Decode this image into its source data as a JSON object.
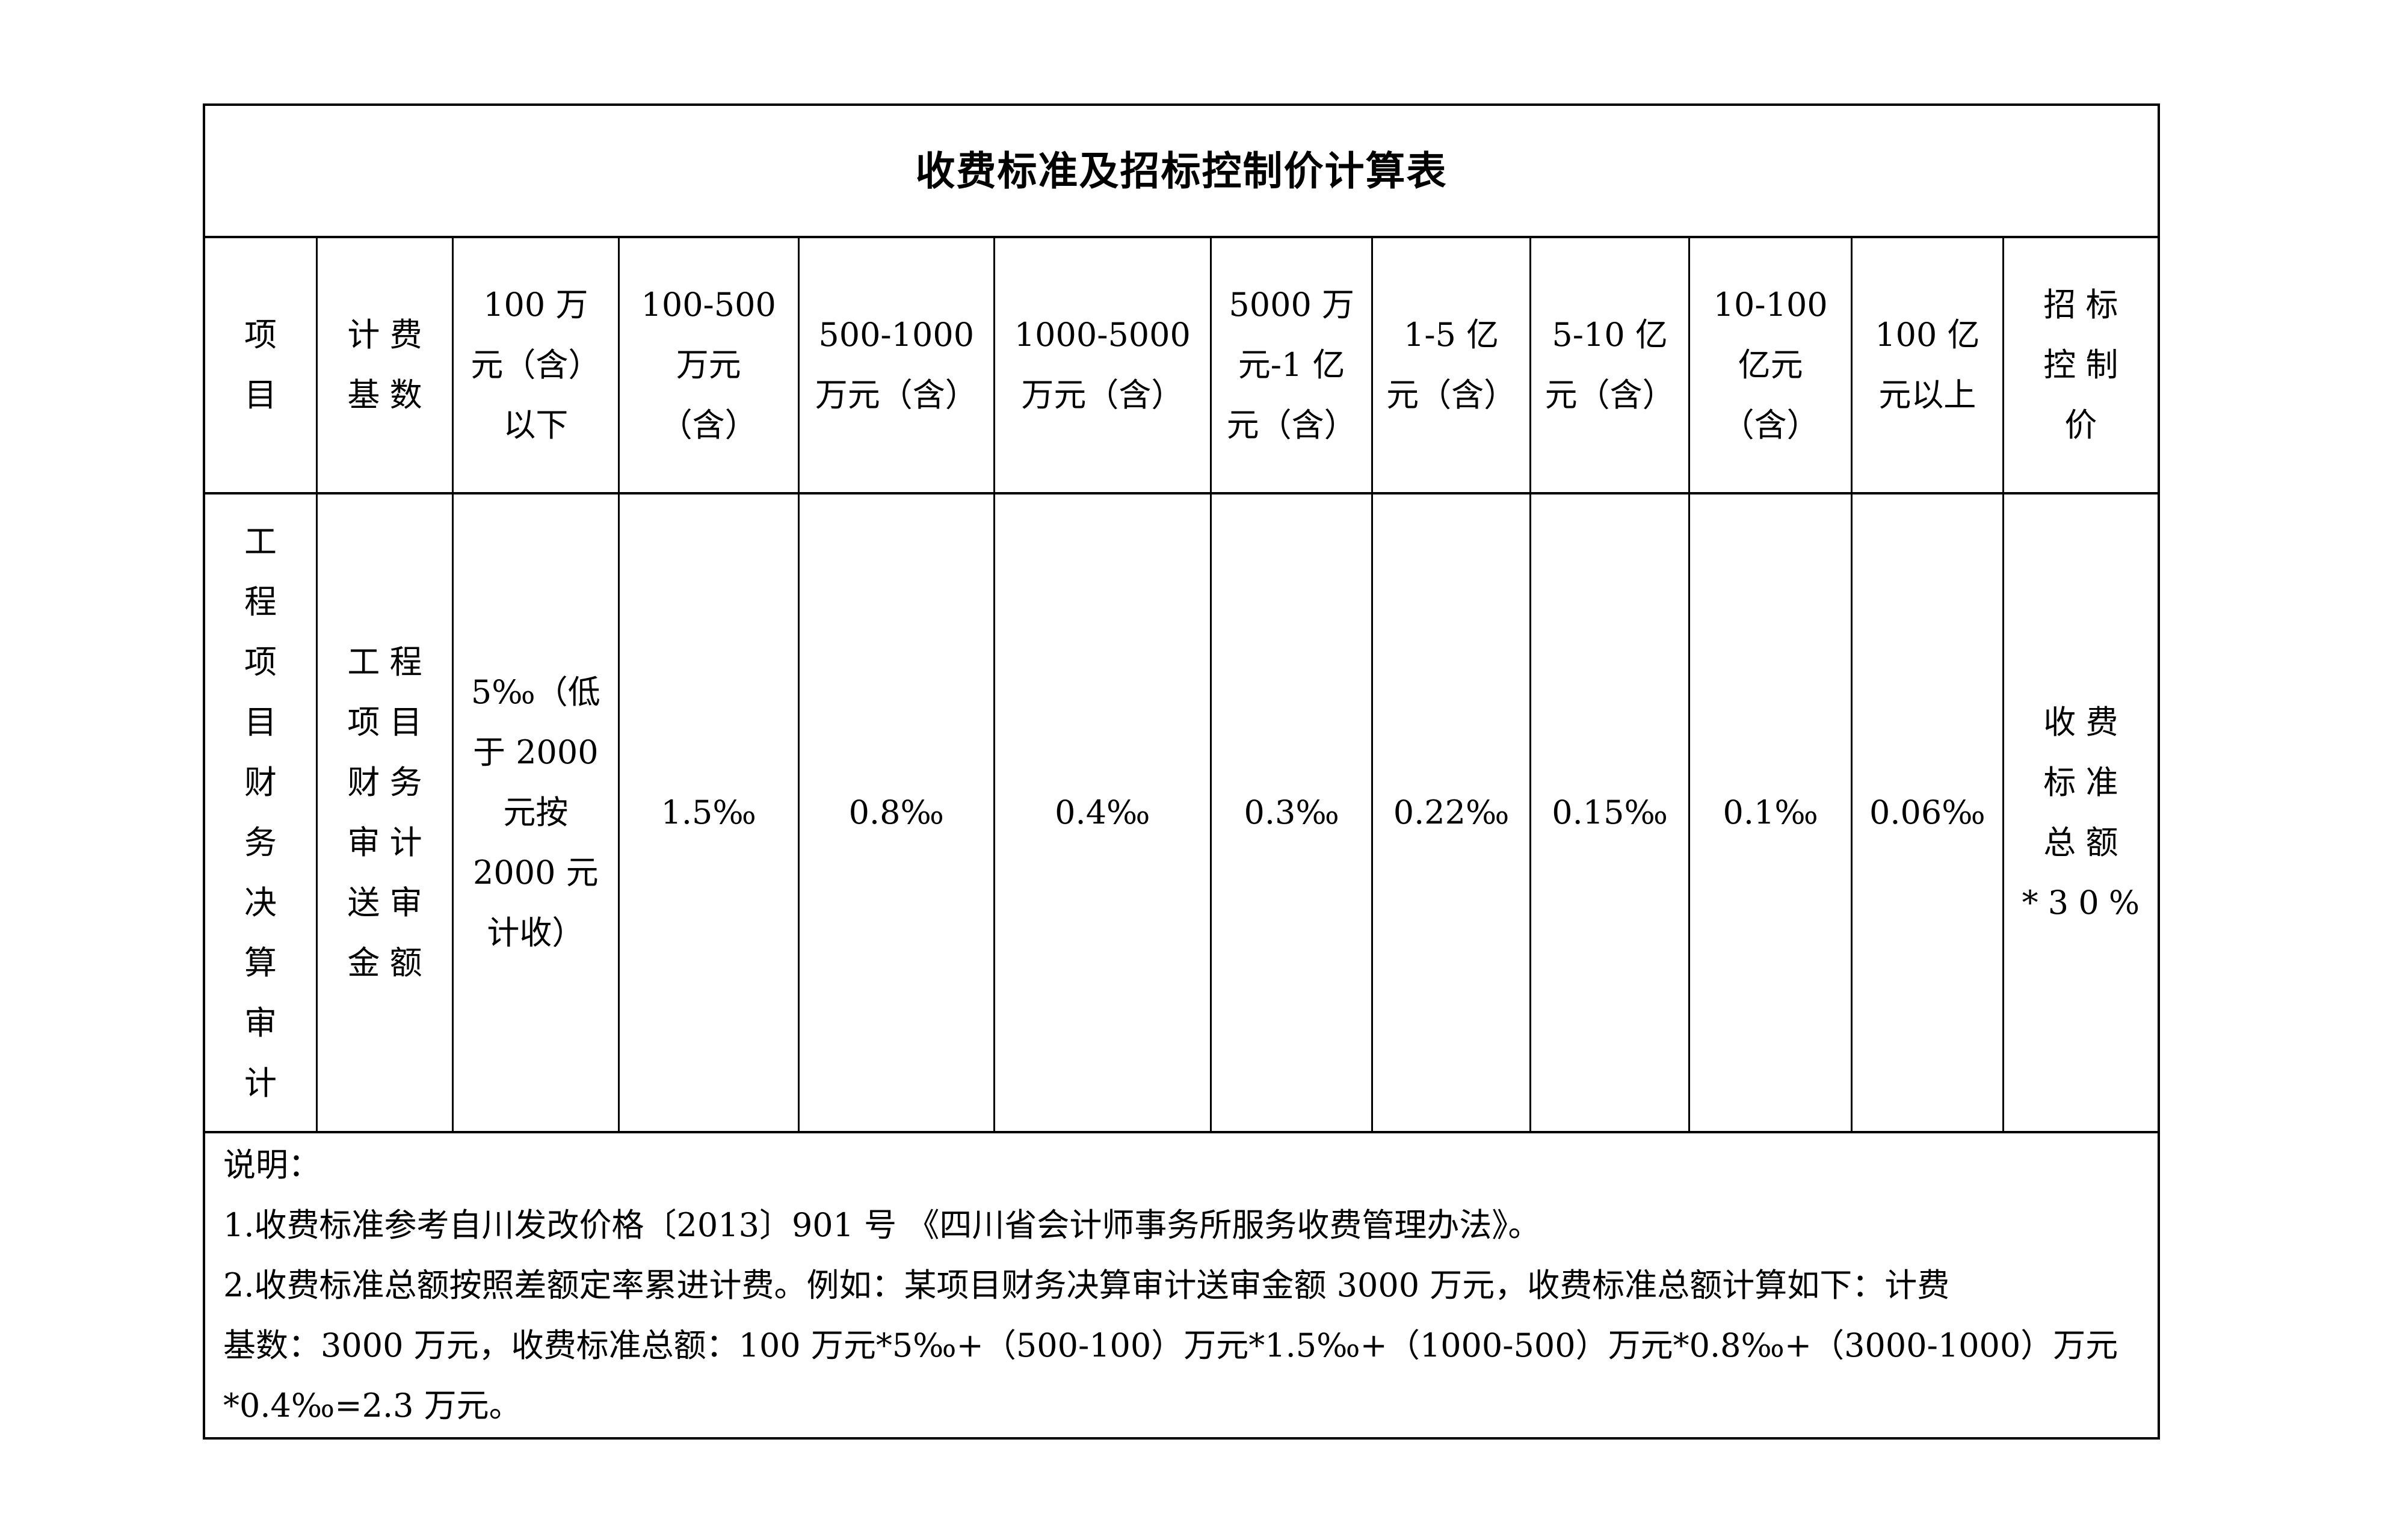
{
  "page_title": "收费标准及招标控制价计算表",
  "columns": [
    {
      "header": [
        "项",
        "目"
      ],
      "cell": [
        "工",
        "程",
        "项",
        "目",
        "财",
        "务",
        "决",
        "算",
        "审",
        "计"
      ]
    },
    {
      "header": [
        "计费",
        "基数"
      ],
      "cell": [
        "工程",
        "项目",
        "财务",
        "审计",
        "送审",
        "金额"
      ]
    },
    {
      "header": [
        "100 万",
        "元（含）",
        "以下"
      ],
      "cell": [
        "5‰（低",
        "于 2000",
        "元按",
        "2000 元",
        "计收）"
      ]
    },
    {
      "header": [
        "100-500",
        "万元",
        "（含）"
      ],
      "cell": [
        "1.5‰"
      ]
    },
    {
      "header": [
        "500-1000",
        "万元（含）"
      ],
      "cell": [
        "0.8‰"
      ]
    },
    {
      "header": [
        "1000-5000",
        "万元（含）"
      ],
      "cell": [
        "0.4‰"
      ]
    },
    {
      "header": [
        "5000 万",
        "元-1 亿",
        "元（含）"
      ],
      "cell": [
        "0.3‰"
      ]
    },
    {
      "header": [
        "1-5 亿",
        "元（含）"
      ],
      "cell": [
        "0.22‰"
      ]
    },
    {
      "header": [
        "5-10 亿",
        "元（含）"
      ],
      "cell": [
        "0.15‰"
      ]
    },
    {
      "header": [
        "10-100",
        "亿元",
        "（含）"
      ],
      "cell": [
        "0.1‰"
      ]
    },
    {
      "header": [
        "100 亿",
        "元以上"
      ],
      "cell": [
        "0.06‰"
      ]
    },
    {
      "header": [
        "招标",
        "控制",
        "价"
      ],
      "cell": [
        "收费",
        "标准",
        "总额",
        "*30%"
      ]
    }
  ],
  "notes": {
    "lines": [
      "说明：",
      "1.收费标准参考自川发改价格〔2013〕901 号 《四川省会计师事务所服务收费管理办法》。",
      "2.收费标准总额按照差额定率累进计费。例如：某项目财务决算审计送审金额 3000 万元，收费标准总额计算如下：计费",
      "基数：3000 万元，收费标准总额：100 万元*5‰+（500-100）万元*1.5‰+（1000-500）万元*0.8‰+（3000-1000）万元",
      "*0.4‰=2.3 万元。"
    ]
  }
}
